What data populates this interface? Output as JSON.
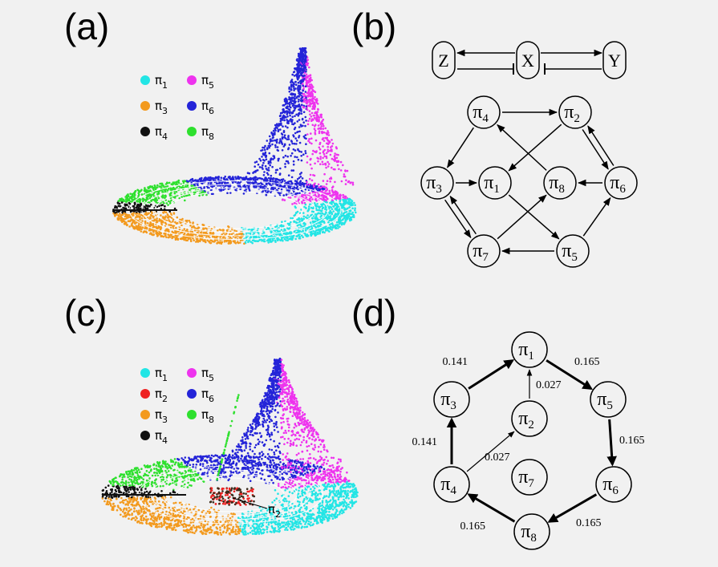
{
  "panels": [
    {
      "id": "a",
      "label": "(a)"
    },
    {
      "id": "b",
      "label": "(b)"
    },
    {
      "id": "c",
      "label": "(c)"
    },
    {
      "id": "d",
      "label": "(d)"
    }
  ],
  "pi": "π",
  "colors": {
    "pi1": "#22e5e5",
    "pi2": "#ee2222",
    "pi3": "#f39a1e",
    "pi4": "#111111",
    "pi5": "#ee33ee",
    "pi6": "#2424d8",
    "pi7": "#888888",
    "pi8": "#2ee02e"
  },
  "legend_a": [
    {
      "key": "pi1",
      "sub": "1"
    },
    {
      "key": "pi5",
      "sub": "5"
    },
    {
      "key": "pi3",
      "sub": "3"
    },
    {
      "key": "pi6",
      "sub": "6"
    },
    {
      "key": "pi4",
      "sub": "4"
    },
    {
      "key": "pi8",
      "sub": "8"
    }
  ],
  "legend_c": [
    {
      "key": "pi1",
      "sub": "1"
    },
    {
      "key": "pi5",
      "sub": "5"
    },
    {
      "key": "pi2",
      "sub": "2"
    },
    {
      "key": "pi6",
      "sub": "6"
    },
    {
      "key": "pi3",
      "sub": "3"
    },
    {
      "key": "pi8",
      "sub": "8"
    },
    {
      "key": "pi4",
      "sub": "4"
    }
  ],
  "annotation_c": {
    "sub": "2"
  },
  "gene_network": {
    "nodes": [
      "Z",
      "X",
      "Y"
    ],
    "edges": [
      {
        "from": "X",
        "to": "Z",
        "type": "activation"
      },
      {
        "from": "Z",
        "to": "X",
        "type": "inhibition"
      },
      {
        "from": "X",
        "to": "Y",
        "type": "activation"
      },
      {
        "from": "Y",
        "to": "X",
        "type": "inhibition"
      }
    ]
  },
  "transition_graph_b": {
    "nodes": [
      "4",
      "2",
      "3",
      "1",
      "8",
      "6",
      "7",
      "5"
    ],
    "edges": [
      {
        "from": "4",
        "to": "2"
      },
      {
        "from": "4",
        "to": "3"
      },
      {
        "from": "2",
        "to": "1"
      },
      {
        "from": "2",
        "to": "6"
      },
      {
        "from": "6",
        "to": "2"
      },
      {
        "from": "8",
        "to": "4"
      },
      {
        "from": "6",
        "to": "8"
      },
      {
        "from": "3",
        "to": "1"
      },
      {
        "from": "3",
        "to": "7"
      },
      {
        "from": "7",
        "to": "3"
      },
      {
        "from": "7",
        "to": "8"
      },
      {
        "from": "1",
        "to": "5"
      },
      {
        "from": "5",
        "to": "7"
      },
      {
        "from": "5",
        "to": "6"
      }
    ]
  },
  "transition_graph_d": {
    "nodes": [
      "1",
      "3",
      "5",
      "2",
      "4",
      "7",
      "6",
      "8"
    ],
    "edges": [
      {
        "from": "3",
        "to": "1",
        "weight": "0.141"
      },
      {
        "from": "1",
        "to": "5",
        "weight": "0.165"
      },
      {
        "from": "2",
        "to": "1",
        "weight": "0.027"
      },
      {
        "from": "4",
        "to": "3",
        "weight": "0.141"
      },
      {
        "from": "4",
        "to": "2",
        "weight": "0.027"
      },
      {
        "from": "5",
        "to": "6",
        "weight": "0.165"
      },
      {
        "from": "6",
        "to": "8",
        "weight": "0.165"
      },
      {
        "from": "8",
        "to": "4",
        "weight": "0.165"
      }
    ]
  }
}
